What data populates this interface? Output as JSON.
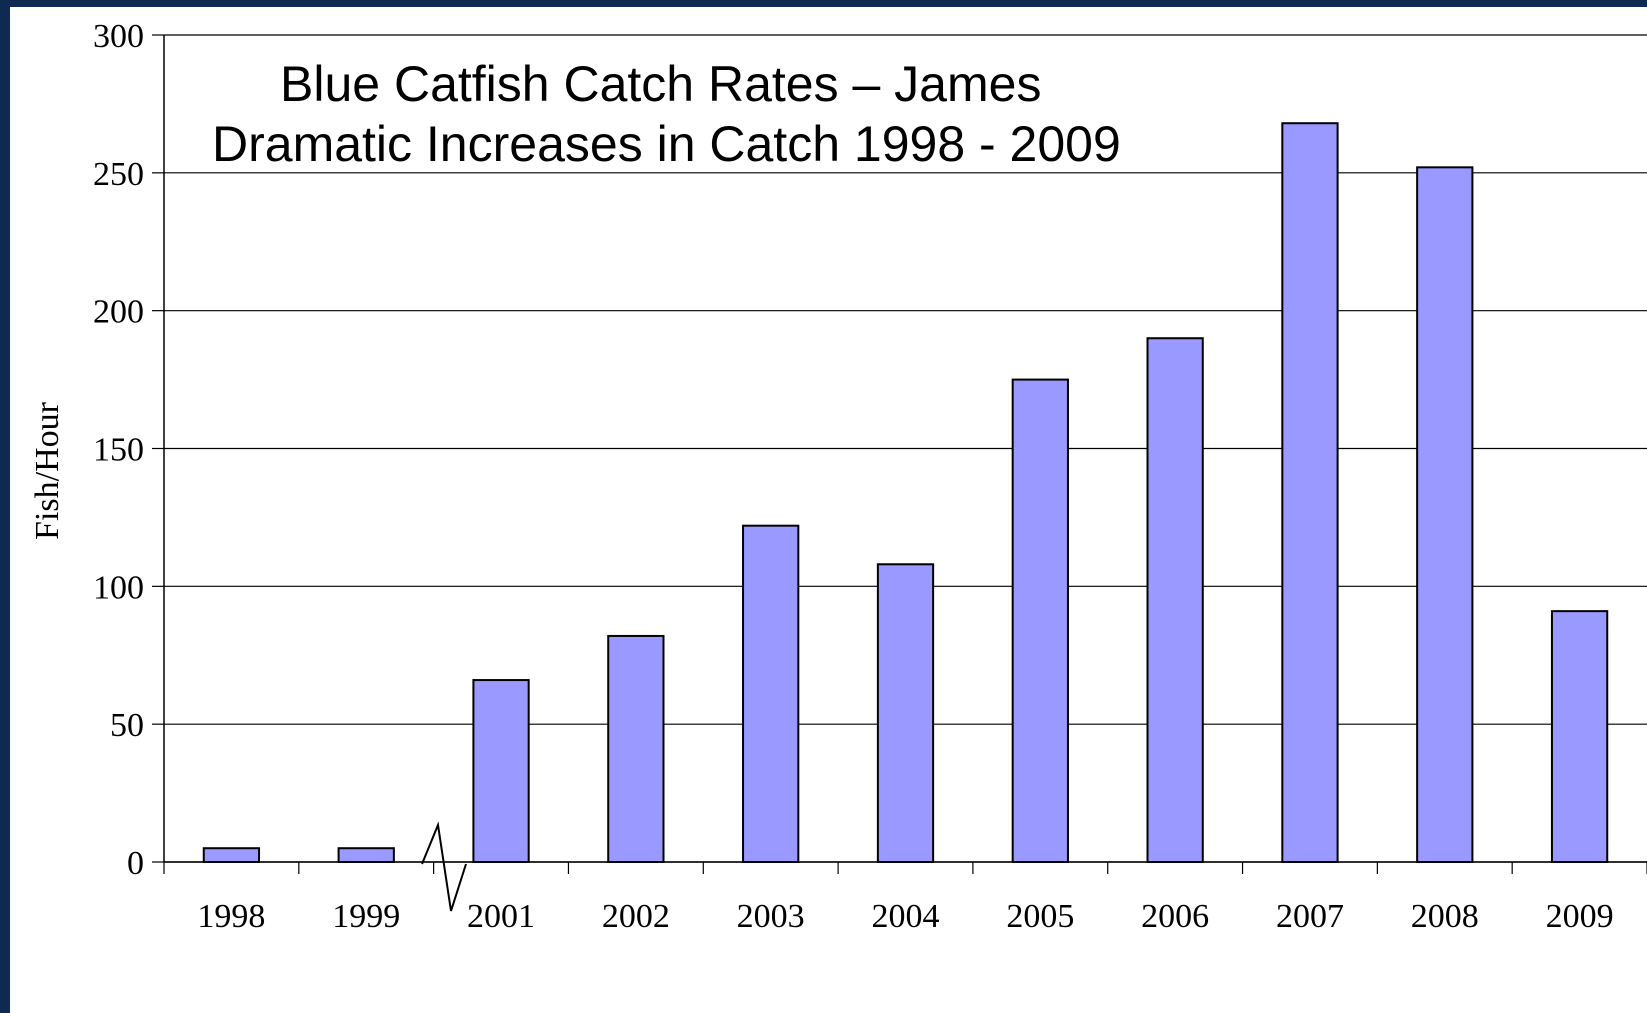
{
  "colors": {
    "background_border": "#0f2a52",
    "plot_background": "#ffffff",
    "bar_fill": "#9999ff",
    "bar_stroke": "#000000",
    "gridline": "#000000"
  },
  "chart_data": {
    "type": "bar",
    "title_lines": [
      "Blue Catfish Catch Rates – James",
      "Dramatic Increases in Catch 1998 - 2009"
    ],
    "xlabel": "",
    "ylabel": "Fish/Hour",
    "categories": [
      "1998",
      "1999",
      "2001",
      "2002",
      "2003",
      "2004",
      "2005",
      "2006",
      "2007",
      "2008",
      "2009"
    ],
    "values": [
      5,
      5,
      66,
      82,
      122,
      108,
      175,
      190,
      268,
      252,
      91
    ],
    "ylim": [
      0,
      300
    ],
    "yticks": [
      0,
      50,
      100,
      150,
      200,
      250,
      300
    ],
    "grid": true,
    "legend": "none",
    "axis_break": "between 1999 and 2001"
  }
}
